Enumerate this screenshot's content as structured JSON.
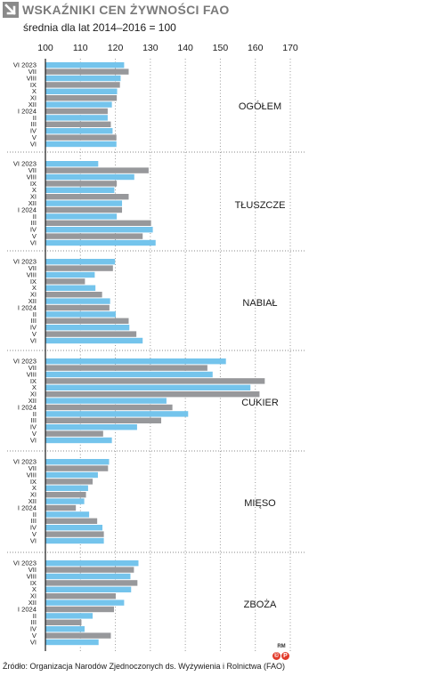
{
  "header": {
    "title": "WSKAŹNIKI CEN ŻYWNOŚCI FAO",
    "subtitle": "średnia dla lat 2014–2016 = 100"
  },
  "footer": {
    "source": "Źródło: Organizacja Narodów Zjednoczonych ds. Wyżywienia i Rolnictwa (FAO)",
    "logo_text": "RM"
  },
  "colors": {
    "blue": "#74c4ec",
    "gray": "#97989b",
    "title_gray": "#7a7a7a",
    "logo_red": "#e23b2a"
  },
  "chart_data": {
    "type": "bar",
    "orientation": "horizontal",
    "axis": {
      "ticks": [
        100,
        110,
        120,
        130,
        140,
        150,
        160,
        170
      ],
      "xlim": [
        100,
        170
      ]
    },
    "grid": "dotted vertical",
    "categories": [
      "VI 2023",
      "VII",
      "VIII",
      "IX",
      "X",
      "XI",
      "XII",
      "I 2024",
      "II",
      "III",
      "IV",
      "V",
      "VI"
    ],
    "bar_colors": [
      "blue",
      "gray",
      "blue",
      "gray",
      "blue",
      "gray",
      "blue",
      "gray",
      "blue",
      "gray",
      "blue",
      "gray",
      "blue"
    ],
    "panels": [
      {
        "name": "OGÓŁEM",
        "values": [
          122.5,
          123.8,
          121.5,
          121.3,
          120.5,
          120.4,
          119.0,
          117.8,
          117.8,
          118.7,
          119.2,
          120.3,
          120.3
        ]
      },
      {
        "name": "TŁUSZCZE",
        "values": [
          115.1,
          129.5,
          125.4,
          120.4,
          119.7,
          123.8,
          121.9,
          121.9,
          120.4,
          130.2,
          130.7,
          127.8,
          131.5
        ]
      },
      {
        "name": "NABIAŁ",
        "values": [
          119.9,
          119.3,
          114.1,
          111.3,
          114.3,
          116.2,
          118.5,
          118.3,
          120.1,
          123.8,
          124.0,
          126.0,
          127.8
        ]
      },
      {
        "name": "CUKIER",
        "values": [
          151.6,
          146.3,
          147.8,
          162.7,
          158.6,
          161.2,
          134.6,
          136.3,
          140.8,
          133.1,
          126.2,
          116.5,
          119.0
        ]
      },
      {
        "name": "MIĘSO",
        "values": [
          118.2,
          117.9,
          115.0,
          113.5,
          112.2,
          111.6,
          111.1,
          108.7,
          112.5,
          114.8,
          116.3,
          116.7,
          116.7
        ]
      },
      {
        "name": "ZBOŻA",
        "values": [
          126.6,
          125.3,
          124.3,
          126.3,
          124.5,
          120.1,
          122.5,
          119.6,
          113.5,
          110.3,
          111.2,
          118.7,
          115.2
        ]
      }
    ]
  }
}
